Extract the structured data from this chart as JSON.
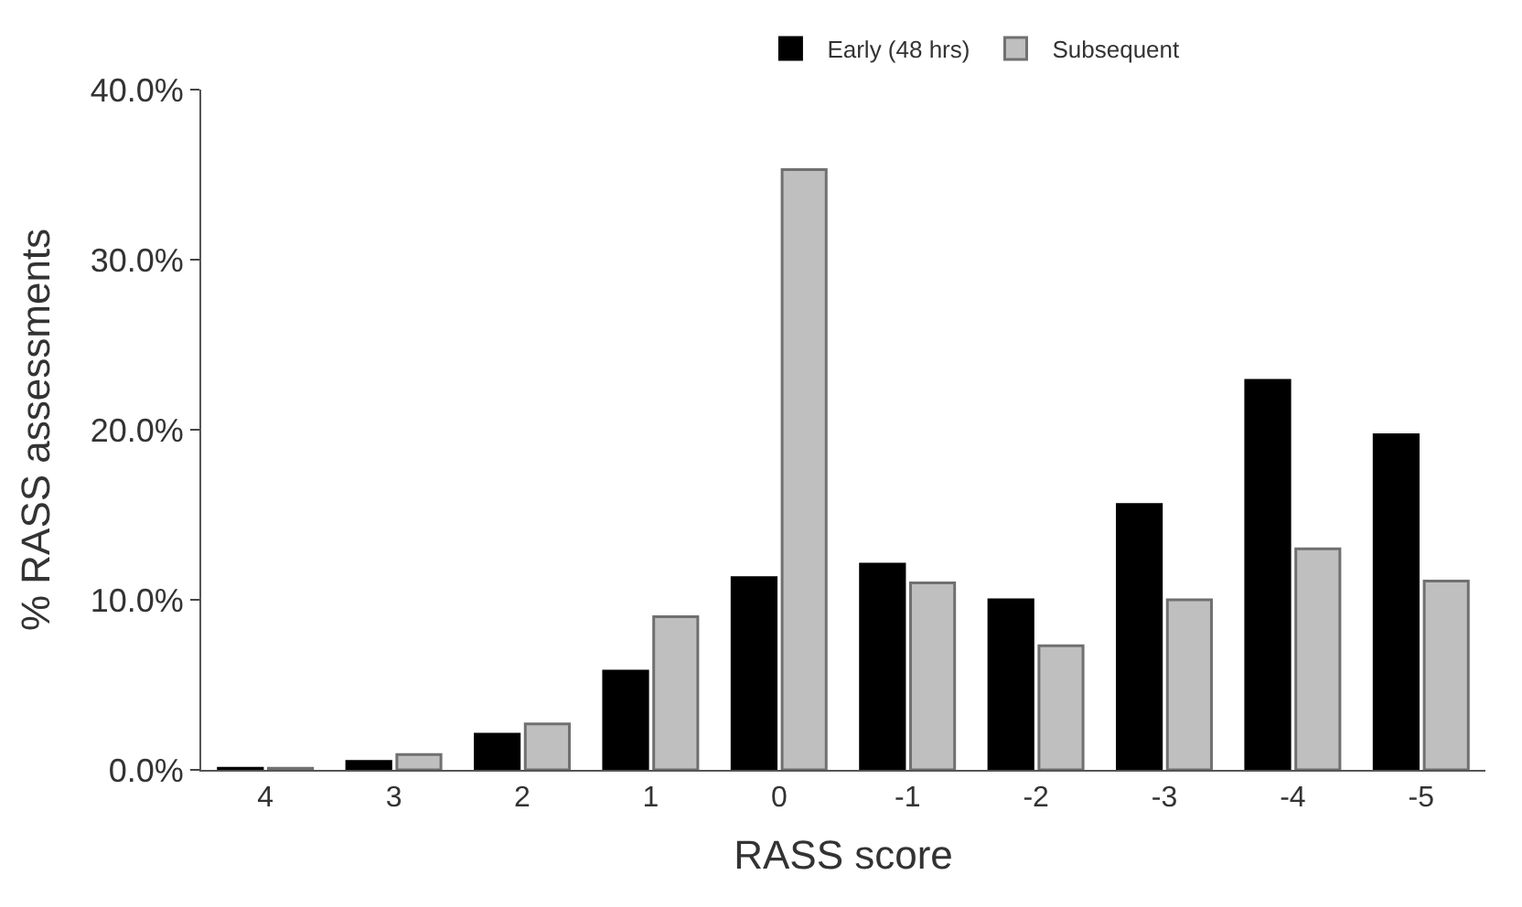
{
  "chart_data": {
    "type": "bar",
    "xlabel": "RASS score",
    "ylabel": "% RASS assessments",
    "categories": [
      "4",
      "3",
      "2",
      "1",
      "0",
      "-1",
      "-2",
      "-3",
      "-4",
      "-5"
    ],
    "series": [
      {
        "name": "Early (48 hrs)",
        "color": "#000000",
        "values": [
          0.1,
          0.5,
          2.1,
          5.8,
          11.3,
          12.1,
          10.0,
          15.6,
          22.9,
          19.7
        ]
      },
      {
        "name": "Subsequent",
        "color": "#bfbfbf",
        "values": [
          0.1,
          0.9,
          2.7,
          9.0,
          35.3,
          11.0,
          7.3,
          10.0,
          13.0,
          11.1
        ]
      }
    ],
    "ylim": [
      0,
      40
    ],
    "yticks": [
      {
        "value": 0,
        "label": "0.0%"
      },
      {
        "value": 10,
        "label": "10.0%"
      },
      {
        "value": 20,
        "label": "20.0%"
      },
      {
        "value": 30,
        "label": "30.0%"
      },
      {
        "value": 40,
        "label": "40.0%"
      }
    ],
    "grid": false,
    "legend": "top"
  }
}
